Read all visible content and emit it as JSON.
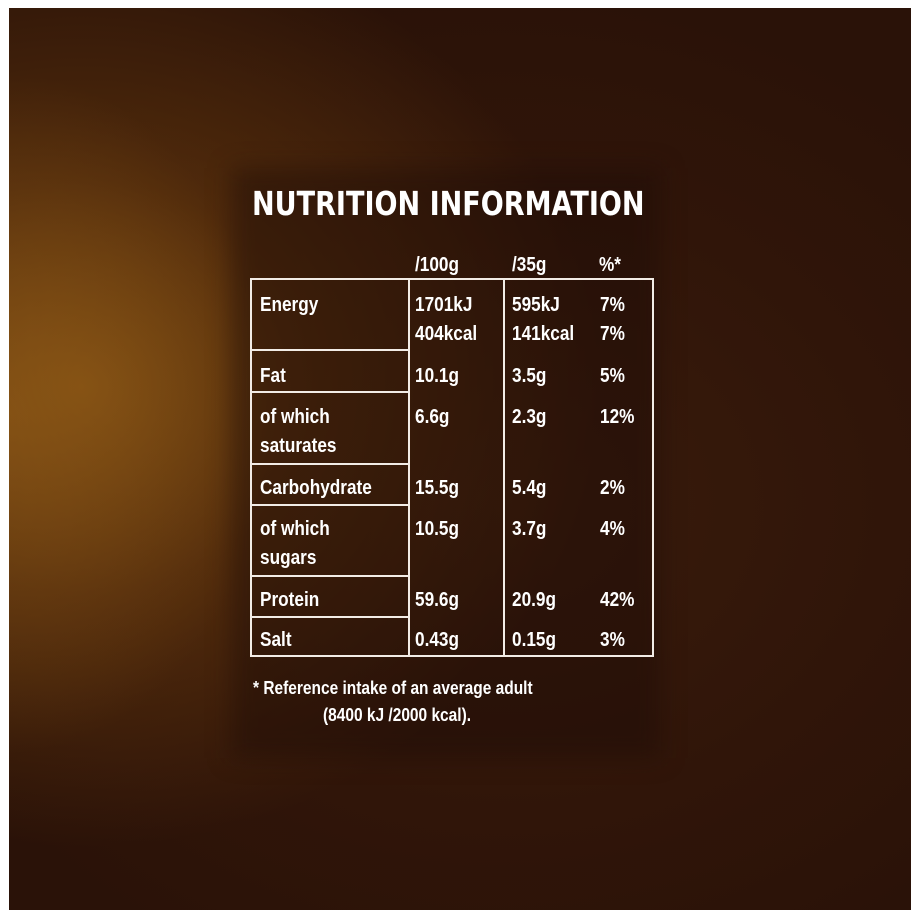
{
  "title": "NUTRITION INFORMATION",
  "columns": [
    "/100g",
    "/35g",
    "%*"
  ],
  "rows": [
    {
      "label": [
        "Energy"
      ],
      "per100": [
        "1701kJ",
        "404kcal"
      ],
      "per35": [
        "595kJ",
        "141kcal"
      ],
      "ri": [
        "7%",
        "7%"
      ]
    },
    {
      "label": [
        "Fat"
      ],
      "per100": [
        "10.1g"
      ],
      "per35": [
        "3.5g"
      ],
      "ri": [
        "5%"
      ]
    },
    {
      "label": [
        "of which",
        "saturates"
      ],
      "per100": [
        "6.6g"
      ],
      "per35": [
        "2.3g"
      ],
      "ri": [
        "12%"
      ]
    },
    {
      "label": [
        "Carbohydrate"
      ],
      "per100": [
        "15.5g"
      ],
      "per35": [
        "5.4g"
      ],
      "ri": [
        "2%"
      ]
    },
    {
      "label": [
        "of which",
        "sugars"
      ],
      "per100": [
        "10.5g"
      ],
      "per35": [
        "3.7g"
      ],
      "ri": [
        "4%"
      ]
    },
    {
      "label": [
        "Protein"
      ],
      "per100": [
        "59.6g"
      ],
      "per35": [
        "20.9g"
      ],
      "ri": [
        "42%"
      ]
    },
    {
      "label": [
        "Salt"
      ],
      "per100": [
        "0.43g"
      ],
      "per35": [
        "0.15g"
      ],
      "ri": [
        "3%"
      ]
    }
  ],
  "footnote": {
    "line1": "* Reference intake of an average adult",
    "line2": "(8400 kJ /2000 kcal)."
  }
}
